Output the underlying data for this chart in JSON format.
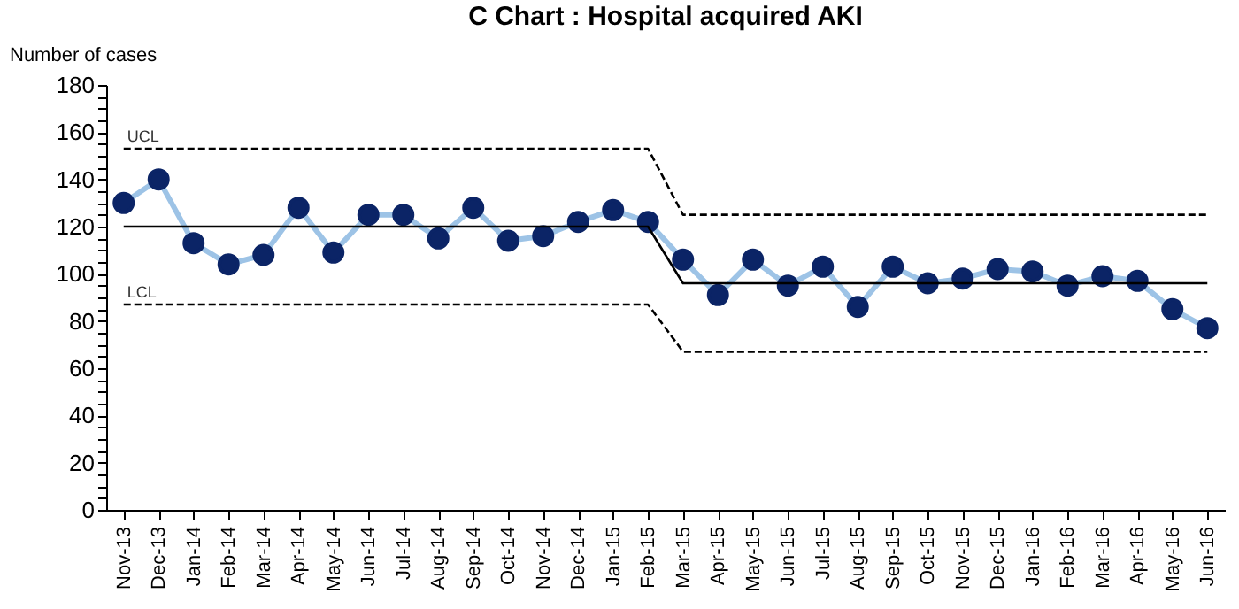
{
  "chart_data": {
    "type": "line",
    "title": "C Chart : Hospital acquired AKI",
    "ylabel": "Number of cases",
    "categories": [
      "Nov-13",
      "Dec-13",
      "Jan-14",
      "Feb-14",
      "Mar-14",
      "Apr-14",
      "May-14",
      "Jun-14",
      "Jul-14",
      "Aug-14",
      "Sep-14",
      "Oct-14",
      "Nov-14",
      "Dec-14",
      "Jan-15",
      "Feb-15",
      "Mar-15",
      "Apr-15",
      "May-15",
      "Jun-15",
      "Jul-15",
      "Aug-15",
      "Sep-15",
      "Oct-15",
      "Nov-15",
      "Dec-15",
      "Jan-16",
      "Feb-16",
      "Mar-16",
      "Apr-16",
      "May-16",
      "Jun-16"
    ],
    "series": [
      {
        "color": "#9dc3e6",
        "marker": "circle",
        "line_style": "solid",
        "values": [
          130,
          140,
          113,
          104,
          108,
          128,
          109,
          125,
          125,
          115,
          128,
          114,
          116,
          122,
          127,
          122,
          106,
          91,
          106,
          95,
          103,
          86,
          103,
          96,
          98,
          102,
          101,
          95,
          99,
          97,
          85,
          77
        ]
      },
      {
        "color": "#000000",
        "marker": "none",
        "line_style": "solid",
        "values": [
          120,
          120,
          120,
          120,
          120,
          120,
          120,
          120,
          120,
          120,
          120,
          120,
          120,
          120,
          120,
          120,
          96,
          96,
          96,
          96,
          96,
          96,
          96,
          96,
          96,
          96,
          96,
          96,
          96,
          96,
          96,
          96
        ]
      },
      {
        "name": "UCL",
        "color": "#000000",
        "marker": "none",
        "line_style": "dashed",
        "values": [
          153,
          153,
          153,
          153,
          153,
          153,
          153,
          153,
          153,
          153,
          153,
          153,
          153,
          153,
          153,
          153,
          125,
          125,
          125,
          125,
          125,
          125,
          125,
          125,
          125,
          125,
          125,
          125,
          125,
          125,
          125,
          125
        ]
      },
      {
        "name": "LCL",
        "color": "#000000",
        "marker": "none",
        "line_style": "dashed",
        "values": [
          87,
          87,
          87,
          87,
          87,
          87,
          87,
          87,
          87,
          87,
          87,
          87,
          87,
          87,
          87,
          87,
          67,
          67,
          67,
          67,
          67,
          67,
          67,
          67,
          67,
          67,
          67,
          67,
          67,
          67,
          67,
          67
        ]
      }
    ],
    "ylim": [
      0,
      180
    ],
    "yticks": [
      0,
      {
        "value": 5,
        "label": null
      },
      {
        "value": 10,
        "label": null
      },
      {
        "value": 15,
        "label": null
      },
      20,
      {
        "value": 25,
        "label": null
      },
      {
        "value": 30,
        "label": null
      },
      {
        "value": 35,
        "label": null
      },
      40,
      {
        "value": 45,
        "label": null
      },
      {
        "value": 50,
        "label": null
      },
      {
        "value": 55,
        "label": null
      },
      60,
      {
        "value": 65,
        "label": null
      },
      {
        "value": 70,
        "label": null
      },
      {
        "value": 75,
        "label": null
      },
      80,
      {
        "value": 85,
        "label": null
      },
      {
        "value": 90,
        "label": null
      },
      {
        "value": 95,
        "label": null
      },
      100,
      {
        "value": 105,
        "label": null
      },
      {
        "value": 110,
        "label": null
      },
      {
        "value": 115,
        "label": null
      },
      120,
      {
        "value": 125,
        "label": null
      },
      {
        "value": 130,
        "label": null
      },
      {
        "value": 135,
        "label": null
      },
      140,
      {
        "value": 145,
        "label": null
      },
      {
        "value": 150,
        "label": null
      },
      {
        "value": 155,
        "label": null
      },
      160,
      {
        "value": 165,
        "label": null
      },
      {
        "value": 170,
        "label": null
      },
      {
        "value": 175,
        "label": null
      },
      180
    ],
    "tick_labels": "xy"
  }
}
